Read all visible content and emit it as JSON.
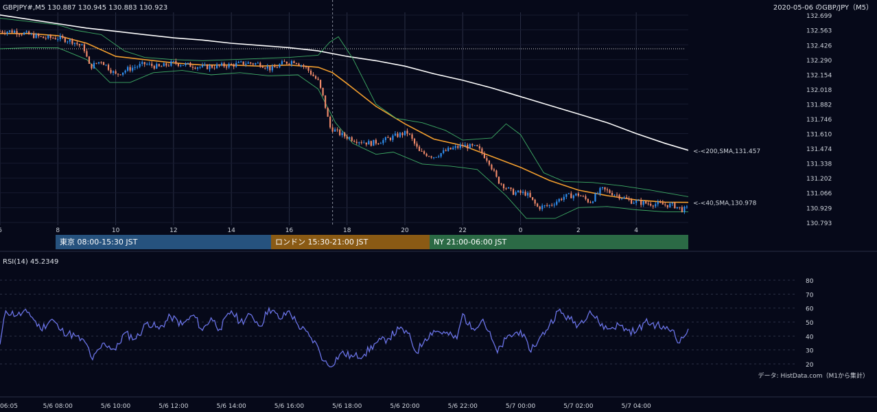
{
  "header": {
    "symbol_info": "GBPJPY#,M5 130.887 130.945 130.883 130.923",
    "title": "2020-05-06 のGBP/JPY（M5）"
  },
  "colors": {
    "background": "#060919",
    "bull": "#2f8ff0",
    "bear": "#f08a6a",
    "sma40": "#f5a02e",
    "sma200": "#ffffff",
    "bollinger": "#3fae66",
    "rsi": "#6b74e8"
  },
  "sessions": [
    {
      "label": "東京 08:00-15:30 JST",
      "color": "#26527e"
    },
    {
      "label": "ロンドン 15:30-21:00 JST",
      "color": "#8a5a14"
    },
    {
      "label": "NY 21:00-06:00 JST",
      "color": "#2b6a45"
    }
  ],
  "annotations": {
    "sma200_label": "<-<200,SMA,131.457",
    "sma40_label": "<-<40,SMA,130.978",
    "rsi_label": "RSI(14) 45.2349",
    "data_source": "データ: HistData.com（M1から集計）"
  },
  "chart_data": [
    {
      "type": "candlestick",
      "title": "2020-05-06 のGBP/JPY（M5）",
      "ylim": [
        130.793,
        132.699
      ],
      "price_ticks": [
        "132.699",
        "132.563",
        "132.426",
        "132.290",
        "132.154",
        "132.018",
        "131.882",
        "131.746",
        "131.610",
        "131.474",
        "131.338",
        "131.202",
        "131.066",
        "130.929",
        "130.793"
      ],
      "hour_ticks": [
        "6",
        "8",
        "10",
        "12",
        "14",
        "16",
        "18",
        "20",
        "22",
        "0",
        "2",
        "4"
      ],
      "x_range_hours": [
        6,
        29.8
      ],
      "dotted_level": 132.39,
      "vertical_marker_hour": 17.5,
      "series": [
        {
          "name": "SMA 200",
          "last": 131.457,
          "points": [
            [
              6.0,
              132.7
            ],
            [
              7.0,
              132.66
            ],
            [
              8.0,
              132.62
            ],
            [
              9.0,
              132.58
            ],
            [
              10.0,
              132.55
            ],
            [
              11.0,
              132.52
            ],
            [
              12.0,
              132.49
            ],
            [
              13.0,
              132.47
            ],
            [
              14.0,
              132.44
            ],
            [
              15.0,
              132.42
            ],
            [
              16.0,
              132.4
            ],
            [
              17.0,
              132.37
            ],
            [
              18.0,
              132.32
            ],
            [
              19.0,
              132.28
            ],
            [
              20.0,
              132.23
            ],
            [
              21.0,
              132.16
            ],
            [
              22.0,
              132.1
            ],
            [
              23.0,
              132.03
            ],
            [
              24.0,
              131.95
            ],
            [
              25.0,
              131.87
            ],
            [
              26.0,
              131.79
            ],
            [
              27.0,
              131.71
            ],
            [
              28.0,
              131.61
            ],
            [
              29.0,
              131.52
            ],
            [
              29.8,
              131.457
            ]
          ]
        },
        {
          "name": "SMA 40",
          "last": 130.978,
          "points": [
            [
              6.0,
              132.53
            ],
            [
              7.0,
              132.53
            ],
            [
              8.0,
              132.51
            ],
            [
              9.0,
              132.44
            ],
            [
              10.0,
              132.32
            ],
            [
              11.0,
              132.29
            ],
            [
              12.0,
              132.26
            ],
            [
              13.0,
              132.24
            ],
            [
              14.0,
              132.24
            ],
            [
              15.0,
              132.23
            ],
            [
              16.0,
              132.24
            ],
            [
              17.0,
              132.22
            ],
            [
              17.5,
              132.17
            ],
            [
              18.0,
              132.07
            ],
            [
              19.0,
              131.86
            ],
            [
              20.0,
              131.7
            ],
            [
              21.0,
              131.56
            ],
            [
              22.0,
              131.5
            ],
            [
              23.0,
              131.4
            ],
            [
              24.0,
              131.3
            ],
            [
              25.0,
              131.18
            ],
            [
              26.0,
              131.09
            ],
            [
              27.0,
              131.04
            ],
            [
              28.0,
              131.0
            ],
            [
              29.0,
              130.98
            ],
            [
              29.8,
              130.978
            ]
          ]
        },
        {
          "name": "Bollinger Upper",
          "points": [
            [
              6.0,
              132.67
            ],
            [
              7.0,
              132.64
            ],
            [
              8.0,
              132.61
            ],
            [
              8.6,
              132.56
            ],
            [
              9.5,
              132.52
            ],
            [
              10.3,
              132.37
            ],
            [
              11.0,
              132.31
            ],
            [
              12.0,
              132.29
            ],
            [
              13.0,
              132.28
            ],
            [
              14.0,
              132.29
            ],
            [
              15.0,
              132.3
            ],
            [
              16.0,
              132.31
            ],
            [
              17.0,
              132.33
            ],
            [
              17.4,
              132.45
            ],
            [
              17.7,
              132.5
            ],
            [
              18.2,
              132.3
            ],
            [
              19.0,
              131.88
            ],
            [
              19.7,
              131.75
            ],
            [
              20.6,
              131.71
            ],
            [
              21.4,
              131.64
            ],
            [
              22.0,
              131.55
            ],
            [
              23.0,
              131.57
            ],
            [
              23.5,
              131.7
            ],
            [
              24.0,
              131.6
            ],
            [
              24.8,
              131.25
            ],
            [
              25.5,
              131.17
            ],
            [
              26.5,
              131.16
            ],
            [
              27.5,
              131.13
            ],
            [
              28.5,
              131.09
            ],
            [
              29.8,
              131.03
            ]
          ]
        },
        {
          "name": "Bollinger Lower",
          "points": [
            [
              6.0,
              132.39
            ],
            [
              7.0,
              132.4
            ],
            [
              8.0,
              132.4
            ],
            [
              9.0,
              132.29
            ],
            [
              9.8,
              132.08
            ],
            [
              10.5,
              132.08
            ],
            [
              11.3,
              132.17
            ],
            [
              12.3,
              132.19
            ],
            [
              13.3,
              132.15
            ],
            [
              14.3,
              132.17
            ],
            [
              15.3,
              132.14
            ],
            [
              16.3,
              132.15
            ],
            [
              17.0,
              132.02
            ],
            [
              17.6,
              131.71
            ],
            [
              18.2,
              131.52
            ],
            [
              19.0,
              131.42
            ],
            [
              19.6,
              131.44
            ],
            [
              20.6,
              131.33
            ],
            [
              21.6,
              131.31
            ],
            [
              22.5,
              131.28
            ],
            [
              23.5,
              131.04
            ],
            [
              24.2,
              130.83
            ],
            [
              25.2,
              130.83
            ],
            [
              26.0,
              130.93
            ],
            [
              27.0,
              130.94
            ],
            [
              28.0,
              130.91
            ],
            [
              29.0,
              130.89
            ],
            [
              29.8,
              130.89
            ]
          ]
        }
      ],
      "close_path": [
        [
          6.0,
          132.55
        ],
        [
          6.5,
          132.55
        ],
        [
          7.0,
          132.52
        ],
        [
          7.5,
          132.49
        ],
        [
          8.0,
          132.49
        ],
        [
          8.5,
          132.46
        ],
        [
          8.9,
          132.4
        ],
        [
          9.1,
          132.22
        ],
        [
          9.5,
          132.28
        ],
        [
          10.0,
          132.15
        ],
        [
          10.4,
          132.2
        ],
        [
          11.0,
          132.25
        ],
        [
          11.5,
          132.22
        ],
        [
          12.0,
          132.26
        ],
        [
          12.5,
          132.24
        ],
        [
          13.0,
          132.22
        ],
        [
          13.5,
          132.23
        ],
        [
          14.0,
          132.24
        ],
        [
          14.5,
          132.26
        ],
        [
          15.0,
          132.25
        ],
        [
          15.4,
          132.2
        ],
        [
          15.8,
          132.26
        ],
        [
          16.2,
          132.28
        ],
        [
          16.6,
          132.21
        ],
        [
          17.0,
          132.09
        ],
        [
          17.2,
          131.92
        ],
        [
          17.4,
          131.67
        ],
        [
          17.8,
          131.6
        ],
        [
          18.3,
          131.55
        ],
        [
          18.8,
          131.52
        ],
        [
          19.3,
          131.55
        ],
        [
          19.8,
          131.6
        ],
        [
          20.1,
          131.62
        ],
        [
          20.5,
          131.44
        ],
        [
          21.0,
          131.4
        ],
        [
          21.5,
          131.46
        ],
        [
          22.0,
          131.5
        ],
        [
          22.5,
          131.48
        ],
        [
          22.9,
          131.36
        ],
        [
          23.2,
          131.18
        ],
        [
          23.7,
          131.07
        ],
        [
          24.2,
          131.06
        ],
        [
          24.6,
          130.93
        ],
        [
          25.0,
          130.95
        ],
        [
          25.5,
          131.03
        ],
        [
          26.0,
          131.05
        ],
        [
          26.4,
          130.98
        ],
        [
          26.8,
          131.1
        ],
        [
          27.3,
          131.05
        ],
        [
          27.8,
          130.99
        ],
        [
          28.3,
          130.97
        ],
        [
          28.8,
          130.96
        ],
        [
          29.3,
          130.95
        ],
        [
          29.6,
          130.91
        ],
        [
          29.8,
          130.923
        ]
      ]
    },
    {
      "type": "line",
      "title": "RSI(14) 45.2349",
      "ylim": [
        15,
        85
      ],
      "y_ticks": [
        80,
        70,
        60,
        50,
        40,
        30,
        20
      ],
      "x_ticks": [
        "06:05",
        "5/6 08:00",
        "5/6 10:00",
        "5/6 12:00",
        "5/6 14:00",
        "5/6 16:00",
        "5/6 18:00",
        "5/6 20:00",
        "5/6 22:00",
        "5/7 00:00",
        "5/7 02:00",
        "5/7 04:00"
      ],
      "last_value": 45.2349,
      "anchors": [
        [
          6.0,
          34
        ],
        [
          6.2,
          58
        ],
        [
          6.6,
          55
        ],
        [
          7.0,
          57
        ],
        [
          7.4,
          45
        ],
        [
          7.8,
          52
        ],
        [
          8.1,
          44
        ],
        [
          8.6,
          40
        ],
        [
          9.0,
          34
        ],
        [
          9.2,
          23
        ],
        [
          9.6,
          35
        ],
        [
          10.0,
          30
        ],
        [
          10.3,
          42
        ],
        [
          10.7,
          38
        ],
        [
          11.1,
          50
        ],
        [
          11.5,
          45
        ],
        [
          11.9,
          54
        ],
        [
          12.3,
          48
        ],
        [
          12.7,
          55
        ],
        [
          13.0,
          44
        ],
        [
          13.3,
          53
        ],
        [
          13.6,
          45
        ],
        [
          14.0,
          58
        ],
        [
          14.3,
          50
        ],
        [
          14.7,
          55
        ],
        [
          15.0,
          47
        ],
        [
          15.3,
          60
        ],
        [
          15.7,
          52
        ],
        [
          16.0,
          58
        ],
        [
          16.3,
          48
        ],
        [
          16.7,
          40
        ],
        [
          17.0,
          32
        ],
        [
          17.2,
          22
        ],
        [
          17.4,
          18
        ],
        [
          17.8,
          28
        ],
        [
          18.2,
          25
        ],
        [
          18.6,
          27
        ],
        [
          19.0,
          35
        ],
        [
          19.4,
          38
        ],
        [
          19.8,
          45
        ],
        [
          20.1,
          42
        ],
        [
          20.4,
          28
        ],
        [
          20.7,
          38
        ],
        [
          21.0,
          44
        ],
        [
          21.4,
          42
        ],
        [
          21.8,
          38
        ],
        [
          22.0,
          56
        ],
        [
          22.3,
          45
        ],
        [
          22.7,
          52
        ],
        [
          23.0,
          38
        ],
        [
          23.2,
          28
        ],
        [
          23.5,
          38
        ],
        [
          24.0,
          44
        ],
        [
          24.3,
          30
        ],
        [
          24.6,
          36
        ],
        [
          25.0,
          48
        ],
        [
          25.3,
          58
        ],
        [
          25.7,
          52
        ],
        [
          26.0,
          48
        ],
        [
          26.4,
          58
        ],
        [
          26.7,
          50
        ],
        [
          27.0,
          45
        ],
        [
          27.4,
          48
        ],
        [
          27.7,
          44
        ],
        [
          28.0,
          43
        ],
        [
          28.3,
          50
        ],
        [
          28.7,
          48
        ],
        [
          29.0,
          45
        ],
        [
          29.3,
          44
        ],
        [
          29.5,
          35
        ],
        [
          29.8,
          45.2
        ]
      ]
    }
  ]
}
